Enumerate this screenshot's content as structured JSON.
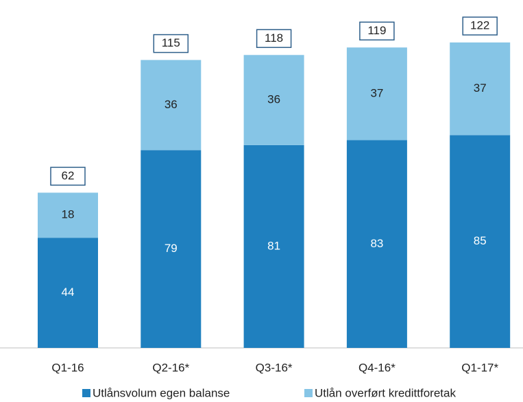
{
  "chart_data": {
    "type": "stacked_bar",
    "categories": [
      "Q1-16",
      "Q2-16*",
      "Q3-16*",
      "Q4-16*",
      "Q1-17*"
    ],
    "series": [
      {
        "name": "Utlånsvolum egen balanse",
        "color": "#1f80bf",
        "values": [
          44,
          79,
          81,
          83,
          85
        ]
      },
      {
        "name": "Utlån overført kredittforetak",
        "color": "#86c5e6",
        "values": [
          18,
          36,
          36,
          37,
          37
        ]
      }
    ],
    "totals": [
      62,
      115,
      118,
      119,
      122
    ]
  }
}
